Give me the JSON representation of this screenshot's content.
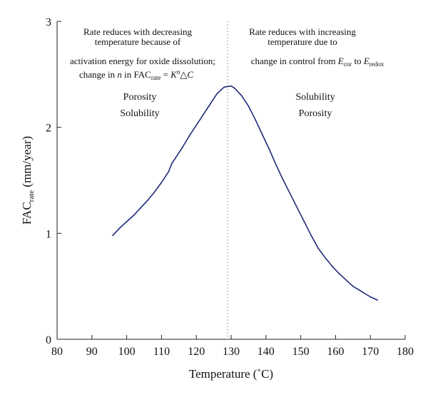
{
  "chart_data": {
    "type": "line",
    "xlabel": "Temperature (˚C)",
    "ylabel": {
      "main": "FAC",
      "sub": "rate",
      "unit": " (mm/year)"
    },
    "xlim": [
      80,
      180
    ],
    "ylim": [
      0,
      3
    ],
    "x_ticks": [
      80,
      90,
      100,
      110,
      120,
      130,
      140,
      150,
      160,
      170,
      180
    ],
    "y_ticks": [
      0,
      1,
      2,
      3
    ],
    "divider_x": 129,
    "line_color": "#1f2a7a",
    "divider_color": "#9a9aa0",
    "series": [
      {
        "points": [
          [
            96,
            0.98
          ],
          [
            98,
            1.05
          ],
          [
            100,
            1.11
          ],
          [
            102,
            1.17
          ],
          [
            104,
            1.24
          ],
          [
            106,
            1.31
          ],
          [
            108,
            1.39
          ],
          [
            110,
            1.48
          ],
          [
            112,
            1.58
          ],
          [
            113,
            1.66
          ],
          [
            114,
            1.71
          ],
          [
            116,
            1.81
          ],
          [
            118,
            1.92
          ],
          [
            120,
            2.02
          ],
          [
            122,
            2.12
          ],
          [
            124,
            2.22
          ],
          [
            126,
            2.32
          ],
          [
            128,
            2.38
          ],
          [
            130,
            2.39
          ],
          [
            131,
            2.37
          ],
          [
            133,
            2.3
          ],
          [
            135,
            2.2
          ],
          [
            137,
            2.07
          ],
          [
            139,
            1.93
          ],
          [
            141,
            1.79
          ],
          [
            143,
            1.64
          ],
          [
            145,
            1.5
          ],
          [
            147,
            1.37
          ],
          [
            149,
            1.24
          ],
          [
            151,
            1.11
          ],
          [
            153,
            0.98
          ],
          [
            155,
            0.86
          ],
          [
            157,
            0.77
          ],
          [
            159,
            0.69
          ],
          [
            161,
            0.62
          ],
          [
            163,
            0.56
          ],
          [
            165,
            0.5
          ],
          [
            167,
            0.46
          ],
          [
            170,
            0.4
          ],
          [
            172,
            0.37
          ]
        ]
      }
    ],
    "annotations": {
      "left": {
        "line1": "Rate reduces with decreasing",
        "line2": "temperature because of",
        "line3": "activation energy for oxide dissolution;",
        "line4": {
          "t1": "change in ",
          "n": "n",
          "t2": " in FAC",
          "sub": "rate",
          "t3": " = ",
          "k": "K",
          "sup": "n",
          "t4": "△",
          "c": "C"
        },
        "label1": "Porosity",
        "label2": "Solubility"
      },
      "right": {
        "line1": "Rate reduces with increasing",
        "line2": "temperature due to",
        "line3": {
          "t1": "change in control from ",
          "e1": "E",
          "sub1": "cor",
          "t2": "  to ",
          "e2": "E",
          "sub2": "redox"
        },
        "label1": "Solubility",
        "label2": "Porosity"
      }
    }
  }
}
